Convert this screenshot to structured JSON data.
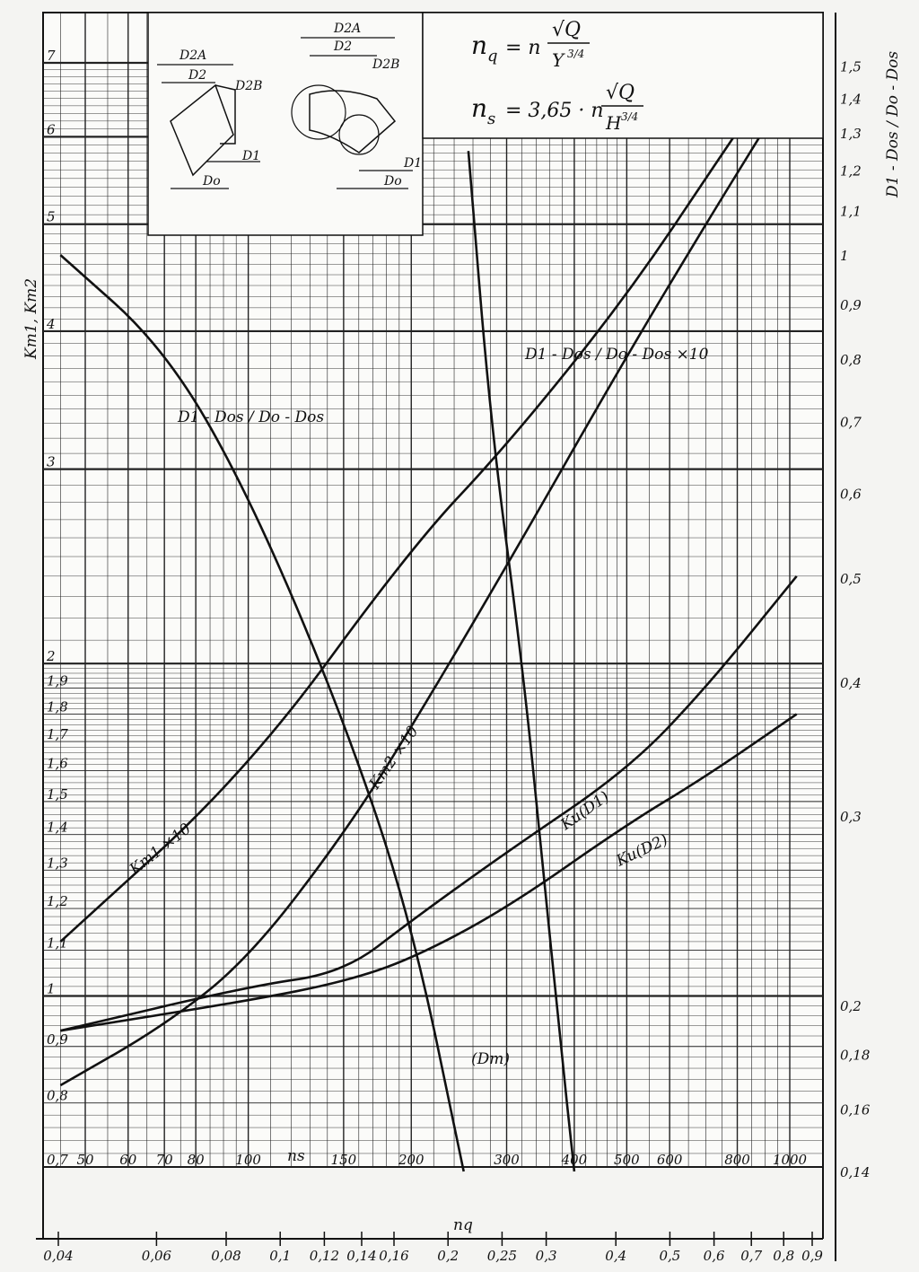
{
  "chart_data": {
    "type": "line",
    "title": "",
    "formula_nq": {
      "lhs": "n",
      "sub": "q",
      "eq": "= n",
      "num": "√Q",
      "den": "Y",
      "exp": "3/4"
    },
    "formula_ns": {
      "lhs": "n",
      "sub": "s",
      "eq": "= 3,65 · n",
      "num": "√Q",
      "den": "H",
      "exp": "3/4"
    },
    "inset_labels": [
      "D2A",
      "D2",
      "D2B",
      "D1",
      "Do"
    ],
    "left_axis": {
      "label": "Km1, Km2",
      "scale": "log",
      "range": [
        0.7,
        7
      ],
      "ticks": [
        "0,7",
        "0,8",
        "0,9",
        "1",
        "1,1",
        "1,2",
        "1,3",
        "1,4",
        "1,5",
        "1,6",
        "1,7",
        "1,8",
        "1,9",
        "2",
        "3",
        "4",
        "5",
        "6",
        "7"
      ]
    },
    "right_axis": {
      "label": "D1 - Dos / Do - Dos",
      "scale": "log",
      "range": [
        0.14,
        1.6
      ],
      "ticks": [
        "0,14",
        "0,16",
        "0,18",
        "0,2",
        "0,3",
        "0,4",
        "0,5",
        "0,6",
        "0,7",
        "0,8",
        "0,9",
        "1",
        "1,1",
        "1,2",
        "1,3",
        "1,4",
        "1,5"
      ]
    },
    "x_axis_ns": {
      "label": "ns",
      "scale": "log",
      "ticks": [
        "50",
        "60",
        "70",
        "80",
        "100",
        "150",
        "200",
        "300",
        "400",
        "500",
        "600",
        "800",
        "1000"
      ]
    },
    "x_axis_nq": {
      "label": "nq",
      "scale": "log",
      "range": [
        0.04,
        0.9
      ],
      "ticks": [
        "0,04",
        "0,06",
        "0,08",
        "0,1",
        "0,12",
        "0,14",
        "0,16",
        "0,2",
        "0,25",
        "0,3",
        "0,4",
        "0,5",
        "0,6",
        "0,7",
        "0,8",
        "0,9"
      ]
    },
    "series": [
      {
        "name": "Km1 ×10",
        "axis": "left",
        "points": [
          [
            45,
            1.12
          ],
          [
            100,
            1.6
          ],
          [
            200,
            2.55
          ],
          [
            300,
            3.15
          ],
          [
            500,
            4.3
          ],
          [
            770,
            5.9
          ],
          [
            900,
            6.6
          ]
        ]
      },
      {
        "name": "Km2 ×10",
        "axis": "left",
        "points": [
          [
            45,
            0.83
          ],
          [
            70,
            0.94
          ],
          [
            100,
            1.08
          ],
          [
            150,
            1.4
          ],
          [
            200,
            1.75
          ],
          [
            300,
            2.45
          ],
          [
            500,
            3.8
          ],
          [
            700,
            5.0
          ],
          [
            880,
            6.0
          ]
        ]
      },
      {
        "name": "Ku(D1)",
        "axis": "left",
        "points": [
          [
            45,
            0.93
          ],
          [
            100,
            1.02
          ],
          [
            150,
            1.05
          ],
          [
            200,
            1.17
          ],
          [
            300,
            1.35
          ],
          [
            500,
            1.6
          ],
          [
            700,
            1.9
          ],
          [
            1030,
            2.4
          ]
        ]
      },
      {
        "name": "Ku(D2)",
        "axis": "left",
        "points": [
          [
            45,
            0.93
          ],
          [
            100,
            0.99
          ],
          [
            150,
            1.03
          ],
          [
            200,
            1.08
          ],
          [
            300,
            1.2
          ],
          [
            500,
            1.43
          ],
          [
            700,
            1.58
          ],
          [
            1030,
            1.8
          ]
        ]
      },
      {
        "name": "D1 - Dos / Do - Dos",
        "axis": "right",
        "points": [
          [
            45,
            1.0
          ],
          [
            70,
            0.82
          ],
          [
            100,
            0.6
          ],
          [
            150,
            0.37
          ],
          [
            200,
            0.24
          ],
          [
            250,
            0.14
          ]
        ]
      },
      {
        "name": "D1 - Dos / Do - Dos ×10",
        "axis": "right",
        "points": [
          [
            255,
            1.25
          ],
          [
            280,
            0.7
          ],
          [
            320,
            0.42
          ],
          [
            350,
            0.27
          ],
          [
            375,
            0.19
          ],
          [
            400,
            0.14
          ]
        ]
      }
    ],
    "annotations": [
      "(Dm)"
    ],
    "grid": true,
    "legend": "none"
  }
}
